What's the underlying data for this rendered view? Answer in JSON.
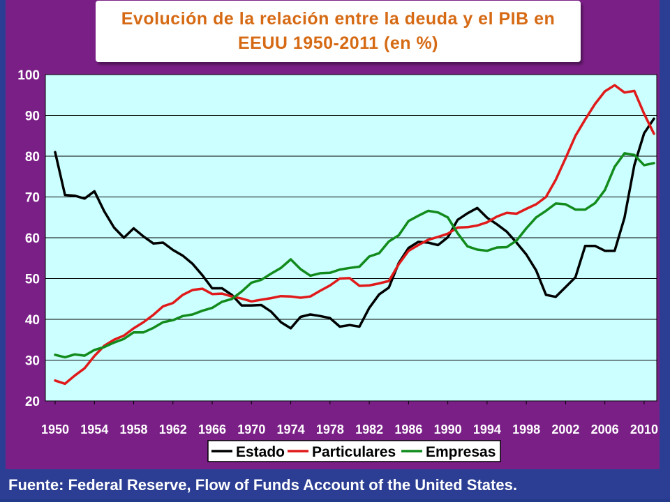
{
  "page": {
    "title": "Evolución de la relación entre la deuda y el PIB en EEUU 1950-2011 (en %)",
    "source": "Fuente: Federal Reserve, Flow of Funds Account of the United States."
  },
  "colors": {
    "background": "#2c3e93",
    "panel": "#7a1f86",
    "plot_background": "#ccffff",
    "title_text": "#d66a14"
  },
  "chart_data": {
    "type": "line",
    "title": "Evolución de la relación entre la deuda y el PIB en EEUU 1950-2011 (en %)",
    "xlim": [
      1950,
      2011
    ],
    "ylim": [
      20,
      100
    ],
    "y_ticks": [
      20,
      30,
      40,
      50,
      60,
      70,
      80,
      90,
      100
    ],
    "x_ticks": [
      1950,
      1954,
      1958,
      1962,
      1966,
      1970,
      1974,
      1978,
      1982,
      1986,
      1990,
      1994,
      1998,
      2002,
      2006,
      2010
    ],
    "grid": true,
    "legend_position": "bottom",
    "x": [
      1950,
      1951,
      1952,
      1953,
      1954,
      1955,
      1956,
      1957,
      1958,
      1959,
      1960,
      1961,
      1962,
      1963,
      1964,
      1965,
      1966,
      1967,
      1968,
      1969,
      1970,
      1971,
      1972,
      1973,
      1974,
      1975,
      1976,
      1977,
      1978,
      1979,
      1980,
      1981,
      1982,
      1983,
      1984,
      1985,
      1986,
      1987,
      1988,
      1989,
      1990,
      1991,
      1992,
      1993,
      1994,
      1995,
      1996,
      1997,
      1998,
      1999,
      2000,
      2001,
      2002,
      2003,
      2004,
      2005,
      2006,
      2007,
      2008,
      2009,
      2010,
      2011
    ],
    "series": [
      {
        "name": "Estado",
        "color": "#000000",
        "values": [
          81,
          70.5,
          70.3,
          69.6,
          71.4,
          66.5,
          62.5,
          60,
          62.3,
          60.3,
          58.6,
          58.8,
          57,
          55.6,
          53.6,
          50.8,
          47.6,
          47.6,
          46,
          43.4,
          43.4,
          43.5,
          41.9,
          39.3,
          37.8,
          40.6,
          41.2,
          40.8,
          40.3,
          38.2,
          38.6,
          38.2,
          42.8,
          46.1,
          47.8,
          53.8,
          57.5,
          59,
          58.8,
          58.2,
          60.1,
          64.4,
          66,
          67.3,
          64.9,
          63.3,
          61.5,
          58.8,
          55.9,
          52,
          46,
          45.5,
          47.9,
          50.3,
          58,
          58,
          56.8,
          56.8,
          64.9,
          77.8,
          85.6,
          89.2
        ]
      },
      {
        "name": "Particulares",
        "color": "#e01a1a",
        "values": [
          25,
          24.2,
          26.2,
          28,
          31,
          33.5,
          35,
          36,
          37.8,
          39.3,
          41.1,
          43.2,
          44,
          46,
          47.2,
          47.5,
          46.2,
          46.3,
          45.6,
          45.1,
          44.4,
          44.8,
          45.2,
          45.7,
          45.6,
          45.3,
          45.6,
          47,
          48.3,
          50,
          50.1,
          48.2,
          48.3,
          48.8,
          49.4,
          53.5,
          56.8,
          58.2,
          59.5,
          60.2,
          61,
          62.5,
          62.6,
          63,
          63.8,
          65.2,
          66.1,
          65.9,
          67.1,
          68.2,
          70,
          74.2,
          79.5,
          85,
          89,
          92.8,
          95.9,
          97.4,
          95.6,
          96,
          90.4,
          85.5
        ]
      },
      {
        "name": "Empresas",
        "color": "#128b1c",
        "values": [
          31.3,
          30.7,
          31.4,
          31.1,
          32.5,
          33.2,
          34.3,
          35.2,
          36.8,
          36.8,
          37.9,
          39.3,
          39.8,
          40.8,
          41.2,
          42.1,
          42.8,
          44.3,
          45,
          46.8,
          49,
          49.7,
          51.2,
          52.6,
          54.7,
          52.3,
          50.7,
          51.3,
          51.4,
          52.2,
          52.6,
          52.9,
          55.4,
          56.2,
          59.1,
          60.6,
          64.1,
          65.4,
          66.6,
          66.2,
          65,
          61.1,
          57.9,
          57.1,
          56.8,
          57.6,
          57.7,
          59.3,
          62.3,
          65,
          66.6,
          68.4,
          68.2,
          66.9,
          66.9,
          68.5,
          71.7,
          77.4,
          80.7,
          80.3,
          77.8,
          78.3
        ]
      }
    ]
  }
}
